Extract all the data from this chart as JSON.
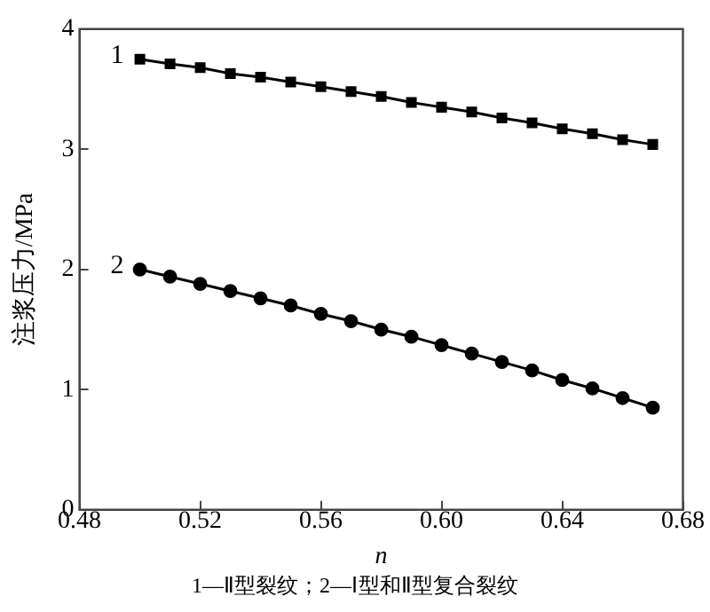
{
  "chart_data": {
    "type": "line",
    "xlabel": "n",
    "ylabel": "注浆压力/MPa",
    "x": [
      0.5,
      0.51,
      0.52,
      0.53,
      0.54,
      0.55,
      0.56,
      0.57,
      0.58,
      0.59,
      0.6,
      0.61,
      0.62,
      0.63,
      0.64,
      0.65,
      0.66,
      0.67
    ],
    "series": [
      {
        "name": "1",
        "color": "#000000",
        "marker": "square",
        "values": [
          3.75,
          3.71,
          3.68,
          3.63,
          3.6,
          3.56,
          3.52,
          3.48,
          3.44,
          3.39,
          3.35,
          3.31,
          3.26,
          3.22,
          3.17,
          3.13,
          3.08,
          3.04
        ]
      },
      {
        "name": "2",
        "color": "#000000",
        "marker": "circle",
        "values": [
          2.0,
          1.94,
          1.88,
          1.82,
          1.76,
          1.7,
          1.63,
          1.57,
          1.5,
          1.44,
          1.37,
          1.3,
          1.23,
          1.16,
          1.08,
          1.01,
          0.93,
          0.85
        ]
      }
    ],
    "xlim": [
      0.48,
      0.68
    ],
    "xticks": [
      {
        "value": 0.48,
        "label": "0.48"
      },
      {
        "value": 0.52,
        "label": "0.52"
      },
      {
        "value": 0.56,
        "label": "0.56"
      },
      {
        "value": 0.6,
        "label": "0.60"
      },
      {
        "value": 0.64,
        "label": "0.64"
      },
      {
        "value": 0.68,
        "label": "0.68"
      }
    ],
    "ylim": [
      0,
      4
    ],
    "yticks": [
      0,
      1,
      2,
      3,
      4
    ],
    "grid": false,
    "legend": false,
    "line_style": "solid",
    "annotations": [
      "1—Ⅱ型裂纹；2—Ⅰ型和Ⅱ型复合裂纹"
    ]
  }
}
